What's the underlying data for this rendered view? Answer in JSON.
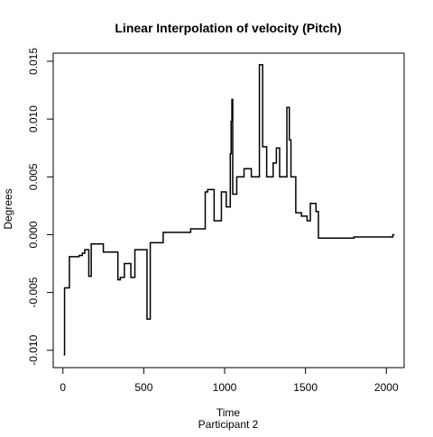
{
  "chart_data": {
    "type": "line",
    "style": "step",
    "title": "Linear Interpolation of velocity (Pitch)",
    "xlabel": "Time",
    "subtitle": "Participant 2",
    "ylabel": "Degrees",
    "xlim": [
      -60,
      2110
    ],
    "ylim": [
      -0.0115,
      0.0157
    ],
    "x_ticks": [
      0,
      500,
      1000,
      1500,
      2000
    ],
    "x_tick_labels": [
      "0",
      "500",
      "1000",
      "1500",
      "2000"
    ],
    "y_ticks": [
      -0.01,
      -0.005,
      0.0,
      0.005,
      0.01,
      0.015
    ],
    "y_tick_labels": [
      "-0.010",
      "-0.005",
      "0.000",
      "0.005",
      "0.010",
      "0.015"
    ],
    "grid": false,
    "line_color": "#000000",
    "series": [
      {
        "x": [
          5,
          10,
          25,
          40,
          60,
          80,
          100,
          110,
          120,
          135,
          150,
          160,
          175,
          185,
          200,
          215,
          230,
          250,
          265,
          280,
          300,
          320,
          340,
          355,
          365,
          380,
          395,
          405,
          420,
          435,
          445,
          455,
          470,
          490,
          510,
          520,
          530,
          540,
          560,
          580,
          620,
          700,
          790,
          860,
          880,
          895,
          910,
          935,
          955,
          980,
          1000,
          1010,
          1025,
          1035,
          1040,
          1045,
          1050,
          1055,
          1075,
          1100,
          1120,
          1140,
          1165,
          1190,
          1215,
          1225,
          1235,
          1245,
          1260,
          1280,
          1300,
          1320,
          1340,
          1360,
          1385,
          1400,
          1410,
          1420,
          1440,
          1455,
          1475,
          1500,
          1510,
          1530,
          1550,
          1565,
          1580,
          1600,
          1620,
          1800,
          2040,
          2050
        ],
        "y": [
          -0.0104,
          -0.0046,
          -0.0046,
          -0.0019,
          -0.0019,
          -0.0019,
          -0.0018,
          -0.0018,
          -0.0016,
          -0.0013,
          -0.0013,
          -0.0036,
          -0.0008,
          -0.0008,
          -0.0008,
          -0.0008,
          -0.0008,
          -0.0015,
          -0.0015,
          -0.0015,
          -0.0015,
          -0.0015,
          -0.0039,
          -0.0037,
          -0.0037,
          -0.0025,
          -0.0025,
          -0.0025,
          -0.0037,
          -0.0037,
          -0.0013,
          -0.0013,
          -0.0013,
          -0.0013,
          -0.0013,
          -0.0073,
          -0.0073,
          -0.0007,
          -0.0007,
          -0.0007,
          0.0002,
          0.0002,
          0.0005,
          0.0005,
          0.0037,
          0.0039,
          0.0039,
          0.0012,
          0.0012,
          0.0037,
          0.0037,
          0.0024,
          0.0024,
          0.007,
          0.0098,
          0.0117,
          0.0035,
          0.0035,
          0.005,
          0.005,
          0.0057,
          0.0057,
          0.005,
          0.005,
          0.0147,
          0.0147,
          0.0076,
          0.0076,
          0.005,
          0.005,
          0.0062,
          0.0075,
          0.005,
          0.005,
          0.011,
          0.0082,
          0.005,
          0.005,
          0.0019,
          0.0019,
          0.0016,
          0.0016,
          0.0012,
          0.0027,
          0.0027,
          0.002,
          -0.0003,
          -0.0003,
          -0.0003,
          -0.0002,
          0.0,
          0.0
        ]
      }
    ]
  }
}
